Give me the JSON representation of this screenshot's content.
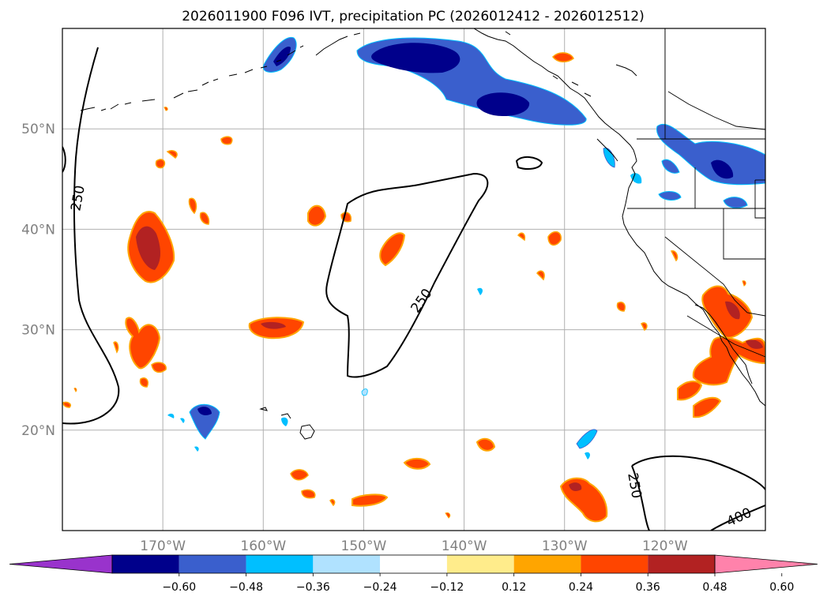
{
  "title": "2026011900 F096 IVT, precipitation PC (2026012412 - 2026012512)",
  "map": {
    "projection": "PlateCarree",
    "lon_range": [
      -180,
      -110
    ],
    "lat_range": [
      10,
      60
    ],
    "gridlines": true,
    "lon_ticks": [
      {
        "value": -170,
        "label": "170°W"
      },
      {
        "value": -160,
        "label": "160°W"
      },
      {
        "value": -150,
        "label": "150°W"
      },
      {
        "value": -140,
        "label": "140°W"
      },
      {
        "value": -130,
        "label": "130°W"
      },
      {
        "value": -120,
        "label": "120°W"
      }
    ],
    "lat_ticks": [
      {
        "value": 20,
        "label": "20°N"
      },
      {
        "value": 30,
        "label": "30°N"
      },
      {
        "value": 40,
        "label": "40°N"
      },
      {
        "value": 50,
        "label": "50°N"
      }
    ],
    "ivt_contour_labels": [
      "250",
      "250",
      "250",
      "400"
    ]
  },
  "colorbar": {
    "extend": "both",
    "ticks": [
      "−0.60",
      "−0.48",
      "−0.36",
      "−0.24",
      "−0.12",
      "0.12",
      "0.24",
      "0.36",
      "0.48",
      "0.60"
    ],
    "colors": [
      "#9933cc",
      "#00008b",
      "#3a5fcd",
      "#00bfff",
      "#b0e2ff",
      "#ffffff",
      "#ffec8b",
      "#ffa500",
      "#ff4500",
      "#b22222",
      "#ff82ab"
    ]
  }
}
